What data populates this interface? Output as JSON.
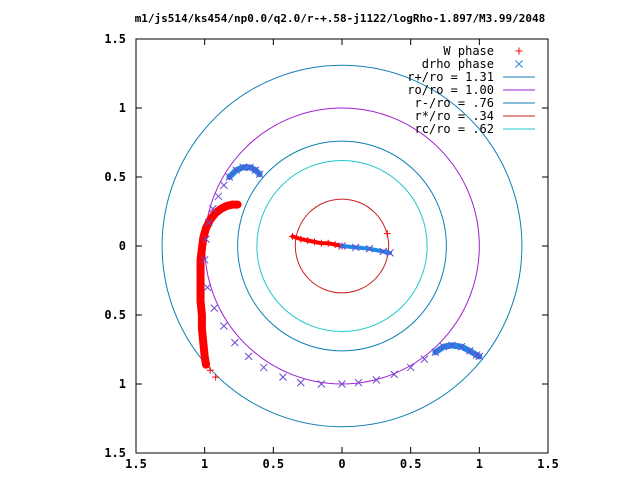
{
  "chart_data": {
    "type": "scatter",
    "title": "m1/js514/ks454/np0.0/q2.0/r-+.58-j1122/logRho-1.897/M3.99/2048",
    "xlabel": "",
    "ylabel": "",
    "xlim": [
      -1.5,
      1.5
    ],
    "ylim": [
      -1.5,
      1.5
    ],
    "grid": false,
    "legend_position": "top-right",
    "x_ticks": [
      {
        "value": -1.5,
        "label": "1.5"
      },
      {
        "value": -1,
        "label": "1"
      },
      {
        "value": -0.5,
        "label": "0.5"
      },
      {
        "value": 0,
        "label": "0"
      },
      {
        "value": 0.5,
        "label": "0.5"
      },
      {
        "value": 1,
        "label": "1"
      },
      {
        "value": 1.5,
        "label": "1.5"
      }
    ],
    "y_ticks": [
      {
        "value": 1.5,
        "label": "1.5"
      },
      {
        "value": 1,
        "label": "1"
      },
      {
        "value": 0.5,
        "label": "0.5"
      },
      {
        "value": 0,
        "label": "0"
      },
      {
        "value": -0.5,
        "label": "0.5"
      },
      {
        "value": -1,
        "label": "1"
      },
      {
        "value": -1.5,
        "label": "1.5"
      }
    ],
    "circles": [
      {
        "name": "r+/ro = 1.31",
        "radius": 1.31,
        "color": "#0f7fb4"
      },
      {
        "name": "ro/ro = 1.00",
        "radius": 1.0,
        "color": "#a020d0"
      },
      {
        "name": "r-/ro = .76",
        "radius": 0.76,
        "color": "#0f7fb4"
      },
      {
        "name": "r*/ro = .34",
        "radius": 0.34,
        "color": "#c82020"
      },
      {
        "name": "rc/ro = .62",
        "radius": 0.62,
        "color": "#20c8c8"
      }
    ],
    "series": [
      {
        "name": "W phase",
        "marker": "plus",
        "color": "#ff0000",
        "points": [
          [
            -0.76,
            0.3
          ],
          [
            -0.8,
            0.3
          ],
          [
            -0.84,
            0.29
          ],
          [
            -0.88,
            0.27
          ],
          [
            -0.92,
            0.24
          ],
          [
            -0.96,
            0.19
          ],
          [
            -0.99,
            0.13
          ],
          [
            -1.01,
            0.06
          ],
          [
            -1.02,
            -0.02
          ],
          [
            -1.03,
            -0.1
          ],
          [
            -1.03,
            -0.2
          ],
          [
            -1.03,
            -0.3
          ],
          [
            -1.03,
            -0.4
          ],
          [
            -1.02,
            -0.5
          ],
          [
            -1.02,
            -0.6
          ],
          [
            -1.01,
            -0.7
          ],
          [
            -1.0,
            -0.8
          ],
          [
            -0.99,
            -0.86
          ],
          [
            -0.96,
            -0.9
          ],
          [
            -0.92,
            -0.95
          ],
          [
            -0.36,
            0.07
          ],
          [
            -0.3,
            0.05
          ],
          [
            -0.25,
            0.04
          ],
          [
            -0.2,
            0.03
          ],
          [
            -0.15,
            0.02
          ],
          [
            -0.1,
            0.02
          ],
          [
            -0.05,
            0.01
          ],
          [
            0.0,
            0.0
          ],
          [
            0.33,
            0.09
          ]
        ]
      },
      {
        "name": "drho phase",
        "marker": "x",
        "color": "#1e88e5",
        "points": [
          [
            -0.6,
            0.52
          ],
          [
            -0.63,
            0.55
          ],
          [
            -0.67,
            0.57
          ],
          [
            -0.72,
            0.57
          ],
          [
            -0.77,
            0.55
          ],
          [
            -0.82,
            0.5
          ],
          [
            -0.86,
            0.44
          ],
          [
            -0.9,
            0.36
          ],
          [
            -0.94,
            0.27
          ],
          [
            -0.97,
            0.17
          ],
          [
            -0.99,
            0.05
          ],
          [
            -1.0,
            -0.1
          ],
          [
            -0.98,
            -0.3
          ],
          [
            -0.93,
            -0.45
          ],
          [
            -0.86,
            -0.58
          ],
          [
            -0.78,
            -0.7
          ],
          [
            -0.68,
            -0.8
          ],
          [
            -0.57,
            -0.88
          ],
          [
            -0.43,
            -0.95
          ],
          [
            -0.3,
            -0.99
          ],
          [
            -0.15,
            -1.0
          ],
          [
            0.0,
            -1.0
          ],
          [
            0.12,
            -0.99
          ],
          [
            0.25,
            -0.97
          ],
          [
            0.38,
            -0.93
          ],
          [
            0.5,
            -0.88
          ],
          [
            0.6,
            -0.82
          ],
          [
            0.68,
            -0.77
          ],
          [
            0.74,
            -0.73
          ],
          [
            0.8,
            -0.72
          ],
          [
            0.87,
            -0.73
          ],
          [
            0.93,
            -0.76
          ],
          [
            0.98,
            -0.79
          ],
          [
            1.0,
            -0.8
          ],
          [
            0.0,
            0.0
          ],
          [
            0.1,
            -0.01
          ],
          [
            0.2,
            -0.02
          ],
          [
            0.3,
            -0.04
          ],
          [
            0.35,
            -0.05
          ]
        ]
      }
    ]
  }
}
